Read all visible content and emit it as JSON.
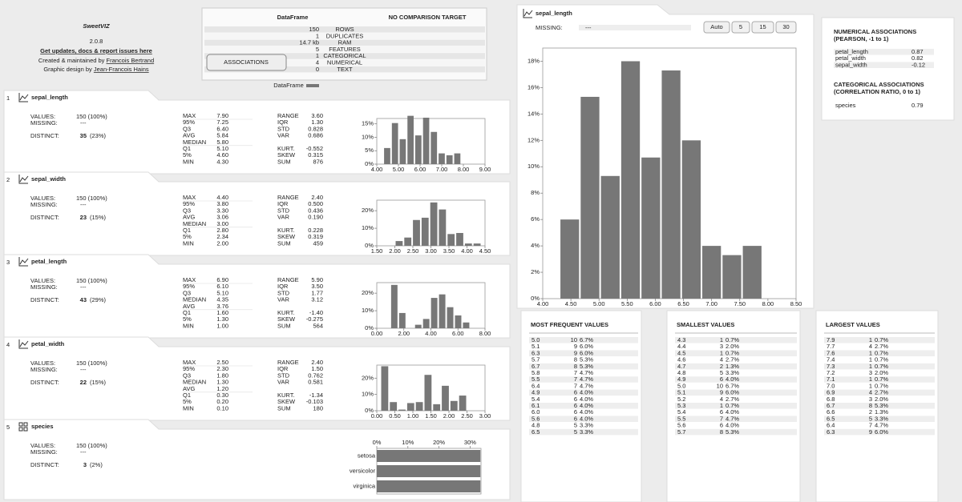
{
  "header": {
    "logo": "SweetVIZ",
    "version": "2.0.8",
    "link": "Get updates, docs & report issues here",
    "credit1": "Created & maintained by ",
    "author1": "Francois Bertrand",
    "credit2": "Graphic design by ",
    "author2": "Jean-Francois Hains"
  },
  "dataframe": {
    "title": "DataFrame",
    "compare": "NO COMPARISON TARGET",
    "button": "ASSOCIATIONS",
    "legend": "DataFrame",
    "rows": [
      [
        "150",
        "ROWS"
      ],
      [
        "1",
        "DUPLICATES"
      ],
      [
        "14.7 kb",
        "RAM"
      ],
      [
        "5",
        "FEATURES"
      ],
      [
        "1",
        "CATEGORICAL"
      ],
      [
        "4",
        "NUMERICAL"
      ],
      [
        "0",
        "TEXT"
      ]
    ]
  },
  "features": [
    {
      "index": "1",
      "name": "sepal_length",
      "values_label": "VALUES:",
      "values": "150 (100%)",
      "missing_label": "MISSING:",
      "missing": "---",
      "distinct_label": "DISTINCT:",
      "distinct": "35",
      "distinct_pct": "(23%)",
      "stats1": [
        [
          "MAX",
          "7.90"
        ],
        [
          "95%",
          "7.25"
        ],
        [
          "Q3",
          "6.40"
        ],
        [
          "AVG",
          "5.84"
        ],
        [
          "MEDIAN",
          "5.80"
        ],
        [
          "Q1",
          "5.10"
        ],
        [
          "5%",
          "4.60"
        ],
        [
          "MIN",
          "4.30"
        ]
      ],
      "stats2": [
        [
          "RANGE",
          "3.60"
        ],
        [
          "IQR",
          "1.30"
        ],
        [
          "STD",
          "0.828"
        ],
        [
          "VAR",
          "0.686"
        ],
        [
          "KURT.",
          "-0.552"
        ],
        [
          "SKEW",
          "0.315"
        ],
        [
          "SUM",
          "876"
        ]
      ],
      "chart": {
        "type": "histogram",
        "bins": [
          4.3,
          4.66,
          5.02,
          5.38,
          5.74,
          6.1,
          6.46,
          6.82,
          7.18,
          7.54,
          7.9
        ],
        "values": [
          6,
          15.3,
          9.3,
          18,
          10.7,
          17.3,
          12,
          4,
          3.3,
          4
        ],
        "color": "#777777",
        "xlim": [
          4,
          9
        ],
        "ylim": [
          0,
          17
        ],
        "xticks": [
          {
            "value": 4,
            "label": "4.00"
          },
          {
            "value": 5,
            "label": "5.00"
          },
          {
            "value": 6,
            "label": "6.00"
          },
          {
            "value": 7,
            "label": "7.00"
          },
          {
            "value": 8,
            "label": "8.00"
          },
          {
            "value": 9,
            "label": "9.00"
          }
        ],
        "yticks": [
          {
            "value": 0,
            "label": "0%"
          },
          {
            "value": 5,
            "label": "5%"
          },
          {
            "value": 10,
            "label": "10%"
          },
          {
            "value": 15,
            "label": "15%"
          }
        ]
      }
    },
    {
      "index": "2",
      "name": "sepal_width",
      "values_label": "VALUES:",
      "values": "150 (100%)",
      "missing_label": "MISSING:",
      "missing": "---",
      "distinct_label": "DISTINCT:",
      "distinct": "23",
      "distinct_pct": "(15%)",
      "stats1": [
        [
          "MAX",
          "4.40"
        ],
        [
          "95%",
          "3.80"
        ],
        [
          "Q3",
          "3.30"
        ],
        [
          "AVG",
          "3.06"
        ],
        [
          "MEDIAN",
          "3.00"
        ],
        [
          "Q1",
          "2.80"
        ],
        [
          "5%",
          "2.34"
        ],
        [
          "MIN",
          "2.00"
        ]
      ],
      "stats2": [
        [
          "RANGE",
          "2.40"
        ],
        [
          "IQR",
          "0.500"
        ],
        [
          "STD",
          "0.436"
        ],
        [
          "VAR",
          "0.190"
        ],
        [
          "KURT.",
          "0.228"
        ],
        [
          "SKEW",
          "0.319"
        ],
        [
          "SUM",
          "459"
        ]
      ],
      "chart": {
        "type": "histogram",
        "bins": [
          2.0,
          2.24,
          2.48,
          2.72,
          2.96,
          3.2,
          3.44,
          3.68,
          3.92,
          4.16,
          4.4
        ],
        "values": [
          2.7,
          4.7,
          14.7,
          16,
          24.7,
          20.7,
          6.7,
          7.3,
          1.3,
          1.3
        ],
        "color": "#777777",
        "xlim": [
          1.5,
          4.5
        ],
        "ylim": [
          0,
          26
        ],
        "xticks": [
          {
            "value": 1.5,
            "label": "1.50"
          },
          {
            "value": 2,
            "label": "2.00"
          },
          {
            "value": 2.5,
            "label": "2.50"
          },
          {
            "value": 3,
            "label": "3.00"
          },
          {
            "value": 3.5,
            "label": "3.50"
          },
          {
            "value": 4,
            "label": "4.00"
          },
          {
            "value": 4.5,
            "label": "4.50"
          }
        ],
        "yticks": [
          {
            "value": 0,
            "label": "0%"
          },
          {
            "value": 10,
            "label": "10%"
          },
          {
            "value": 20,
            "label": "20%"
          }
        ]
      }
    },
    {
      "index": "3",
      "name": "petal_length",
      "values_label": "VALUES:",
      "values": "150 (100%)",
      "missing_label": "MISSING:",
      "missing": "---",
      "distinct_label": "DISTINCT:",
      "distinct": "43",
      "distinct_pct": "(29%)",
      "stats1": [
        [
          "MAX",
          "6.90"
        ],
        [
          "95%",
          "6.10"
        ],
        [
          "Q3",
          "5.10"
        ],
        [
          "MEDIAN",
          "4.35"
        ],
        [
          "AVG",
          "3.76"
        ],
        [
          "Q1",
          "1.60"
        ],
        [
          "5%",
          "1.30"
        ],
        [
          "MIN",
          "1.00"
        ]
      ],
      "stats2": [
        [
          "RANGE",
          "5.90"
        ],
        [
          "IQR",
          "3.50"
        ],
        [
          "STD",
          "1.77"
        ],
        [
          "VAR",
          "3.12"
        ],
        [
          "KURT.",
          "-1.40"
        ],
        [
          "SKEW",
          "-0.275"
        ],
        [
          "SUM",
          "564"
        ]
      ],
      "chart": {
        "type": "histogram",
        "bins": [
          1.0,
          1.59,
          2.18,
          2.77,
          3.36,
          3.95,
          4.54,
          5.13,
          5.72,
          6.31,
          6.9
        ],
        "values": [
          24.7,
          8.7,
          0,
          2,
          5.3,
          17.3,
          19.3,
          12,
          7.3,
          3.3
        ],
        "color": "#777777",
        "xlim": [
          0,
          8
        ],
        "ylim": [
          0,
          26
        ],
        "xticks": [
          {
            "value": 0,
            "label": "0.00"
          },
          {
            "value": 2,
            "label": "2.00"
          },
          {
            "value": 4,
            "label": "4.00"
          },
          {
            "value": 6,
            "label": "6.00"
          },
          {
            "value": 8,
            "label": "8.00"
          }
        ],
        "yticks": [
          {
            "value": 0,
            "label": "0%"
          },
          {
            "value": 10,
            "label": "10%"
          },
          {
            "value": 20,
            "label": "20%"
          }
        ]
      }
    },
    {
      "index": "4",
      "name": "petal_width",
      "values_label": "VALUES:",
      "values": "150 (100%)",
      "missing_label": "MISSING:",
      "missing": "---",
      "distinct_label": "DISTINCT:",
      "distinct": "22",
      "distinct_pct": "(15%)",
      "stats1": [
        [
          "MAX",
          "2.50"
        ],
        [
          "95%",
          "2.30"
        ],
        [
          "Q3",
          "1.80"
        ],
        [
          "MEDIAN",
          "1.30"
        ],
        [
          "AVG",
          "1.20"
        ],
        [
          "Q1",
          "0.30"
        ],
        [
          "5%",
          "0.20"
        ],
        [
          "MIN",
          "0.10"
        ]
      ],
      "stats2": [
        [
          "RANGE",
          "2.40"
        ],
        [
          "IQR",
          "1.50"
        ],
        [
          "STD",
          "0.762"
        ],
        [
          "VAR",
          "0.581"
        ],
        [
          "KURT.",
          "-1.34"
        ],
        [
          "SKEW",
          "-0.103"
        ],
        [
          "SUM",
          "180"
        ]
      ],
      "chart": {
        "type": "histogram",
        "bins": [
          0.1,
          0.34,
          0.58,
          0.82,
          1.06,
          1.3,
          1.54,
          1.78,
          2.02,
          2.26,
          2.5
        ],
        "values": [
          27.3,
          5.3,
          0.7,
          4.7,
          5.3,
          22,
          4,
          15.3,
          6,
          9.3
        ],
        "color": "#777777",
        "xlim": [
          0,
          3
        ],
        "ylim": [
          0,
          28
        ],
        "xticks": [
          {
            "value": 0,
            "label": "0.00"
          },
          {
            "value": 0.5,
            "label": "0.50"
          },
          {
            "value": 1,
            "label": "1.00"
          },
          {
            "value": 1.5,
            "label": "1.50"
          },
          {
            "value": 2,
            "label": "2.00"
          },
          {
            "value": 2.5,
            "label": "2.50"
          },
          {
            "value": 3,
            "label": "3.00"
          }
        ],
        "yticks": [
          {
            "value": 0,
            "label": "0%"
          },
          {
            "value": 10,
            "label": "10%"
          },
          {
            "value": 20,
            "label": "20%"
          }
        ]
      }
    },
    {
      "index": "5",
      "name": "species",
      "values_label": "VALUES:",
      "values": "150 (100%)",
      "missing_label": "MISSING:",
      "missing": "---",
      "distinct_label": "DISTINCT:",
      "distinct": "3",
      "distinct_pct": "(2%)",
      "chart": {
        "type": "hbar",
        "categories": [
          "setosa",
          "versicolor",
          "virginica"
        ],
        "values": [
          33.3,
          33.3,
          33.3
        ],
        "color": "#777777",
        "xlim": [
          0,
          33.5
        ],
        "xticks": [
          {
            "value": 0,
            "label": "0%"
          },
          {
            "value": 10,
            "label": "10%"
          },
          {
            "value": 20,
            "label": "20%"
          },
          {
            "value": 30,
            "label": "30%"
          }
        ]
      }
    }
  ],
  "detail": {
    "name": "sepal_length",
    "missing_label": "MISSING:",
    "missing": "---",
    "buttons": [
      "Auto",
      "5",
      "15",
      "30"
    ],
    "chart": {
      "type": "histogram",
      "bins": [
        4.3,
        4.66,
        5.02,
        5.38,
        5.74,
        6.1,
        6.46,
        6.82,
        7.18,
        7.54,
        7.9
      ],
      "values": [
        6,
        15.3,
        9.3,
        18,
        10.7,
        17.3,
        12,
        4,
        3.3,
        4
      ],
      "color": "#777777",
      "xlim": [
        4,
        8.5
      ],
      "ylim": [
        0,
        19
      ],
      "xticks": [
        {
          "value": 4,
          "label": "4.00"
        },
        {
          "value": 4.5,
          "label": "4.50"
        },
        {
          "value": 5,
          "label": "5.00"
        },
        {
          "value": 5.5,
          "label": "5.50"
        },
        {
          "value": 6,
          "label": "6.00"
        },
        {
          "value": 6.5,
          "label": "6.50"
        },
        {
          "value": 7,
          "label": "7.00"
        },
        {
          "value": 7.5,
          "label": "7.50"
        },
        {
          "value": 8,
          "label": "8.00"
        },
        {
          "value": 8.5,
          "label": "8.50"
        }
      ],
      "yticks": [
        {
          "value": 0,
          "label": "0%"
        },
        {
          "value": 2,
          "label": "2%"
        },
        {
          "value": 4,
          "label": "4%"
        },
        {
          "value": 6,
          "label": "6%"
        },
        {
          "value": 8,
          "label": "8%"
        },
        {
          "value": 10,
          "label": "10%"
        },
        {
          "value": 12,
          "label": "12%"
        },
        {
          "value": 14,
          "label": "14%"
        },
        {
          "value": 16,
          "label": "16%"
        },
        {
          "value": 18,
          "label": "18%"
        }
      ]
    }
  },
  "associations": {
    "numerical": {
      "title": "NUMERICAL ASSOCIATIONS",
      "subtitle": "(PEARSON, -1 to 1)",
      "rows": [
        [
          "petal_length",
          "0.87"
        ],
        [
          "petal_width",
          "0.82"
        ],
        [
          "sepal_width",
          "-0.12"
        ]
      ]
    },
    "categorical": {
      "title": "CATEGORICAL ASSOCIATIONS",
      "subtitle": "(CORRELATION RATIO, 0 to 1)",
      "rows": [
        [
          "species",
          "0.79"
        ]
      ]
    }
  },
  "tables": [
    {
      "title": "MOST FREQUENT VALUES",
      "rows": [
        [
          "5.0",
          "10",
          "6.7%"
        ],
        [
          "5.1",
          "9",
          "6.0%"
        ],
        [
          "6.3",
          "9",
          "6.0%"
        ],
        [
          "5.7",
          "8",
          "5.3%"
        ],
        [
          "6.7",
          "8",
          "5.3%"
        ],
        [
          "5.8",
          "7",
          "4.7%"
        ],
        [
          "5.5",
          "7",
          "4.7%"
        ],
        [
          "6.4",
          "7",
          "4.7%"
        ],
        [
          "4.9",
          "6",
          "4.0%"
        ],
        [
          "5.4",
          "6",
          "4.0%"
        ],
        [
          "6.1",
          "6",
          "4.0%"
        ],
        [
          "6.0",
          "6",
          "4.0%"
        ],
        [
          "5.6",
          "6",
          "4.0%"
        ],
        [
          "4.8",
          "5",
          "3.3%"
        ],
        [
          "6.5",
          "5",
          "3.3%"
        ]
      ]
    },
    {
      "title": "SMALLEST VALUES",
      "rows": [
        [
          "4.3",
          "1",
          "0.7%"
        ],
        [
          "4.4",
          "3",
          "2.0%"
        ],
        [
          "4.5",
          "1",
          "0.7%"
        ],
        [
          "4.6",
          "4",
          "2.7%"
        ],
        [
          "4.7",
          "2",
          "1.3%"
        ],
        [
          "4.8",
          "5",
          "3.3%"
        ],
        [
          "4.9",
          "6",
          "4.0%"
        ],
        [
          "5.0",
          "10",
          "6.7%"
        ],
        [
          "5.1",
          "9",
          "6.0%"
        ],
        [
          "5.2",
          "4",
          "2.7%"
        ],
        [
          "5.3",
          "1",
          "0.7%"
        ],
        [
          "5.4",
          "6",
          "4.0%"
        ],
        [
          "5.5",
          "7",
          "4.7%"
        ],
        [
          "5.6",
          "6",
          "4.0%"
        ],
        [
          "5.7",
          "8",
          "5.3%"
        ]
      ]
    },
    {
      "title": "LARGEST VALUES",
      "rows": [
        [
          "7.9",
          "1",
          "0.7%"
        ],
        [
          "7.7",
          "4",
          "2.7%"
        ],
        [
          "7.6",
          "1",
          "0.7%"
        ],
        [
          "7.4",
          "1",
          "0.7%"
        ],
        [
          "7.3",
          "1",
          "0.7%"
        ],
        [
          "7.2",
          "3",
          "2.0%"
        ],
        [
          "7.1",
          "1",
          "0.7%"
        ],
        [
          "7.0",
          "1",
          "0.7%"
        ],
        [
          "6.9",
          "4",
          "2.7%"
        ],
        [
          "6.8",
          "3",
          "2.0%"
        ],
        [
          "6.7",
          "8",
          "5.3%"
        ],
        [
          "6.6",
          "2",
          "1.3%"
        ],
        [
          "6.5",
          "5",
          "3.3%"
        ],
        [
          "6.4",
          "7",
          "4.7%"
        ],
        [
          "6.3",
          "9",
          "6.0%"
        ]
      ]
    }
  ]
}
